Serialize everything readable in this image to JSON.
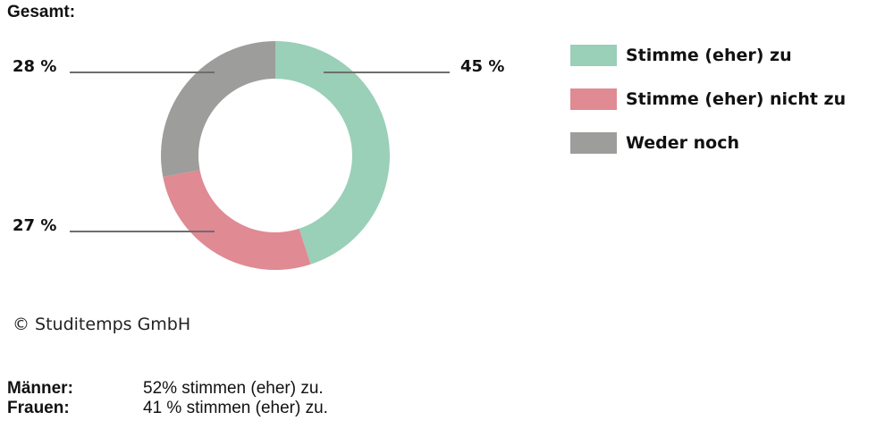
{
  "title": "Gesamt:",
  "chart_data": {
    "type": "pie",
    "subtype": "donut",
    "title": "Gesamt:",
    "categories": [
      "Stimme (eher) zu",
      "Stimme (eher) nicht zu",
      "Weder noch"
    ],
    "values": [
      45,
      27,
      28
    ],
    "unit": "%",
    "colors": [
      "#9acfb8",
      "#e08a93",
      "#9d9d9c"
    ],
    "data_labels": [
      "45 %",
      "27 %",
      "28 %"
    ],
    "legend_position": "right"
  },
  "labels": {
    "agree": "45 %",
    "disagree": "27 %",
    "neutral": "28 %"
  },
  "legend": [
    {
      "label": "Stimme (eher) zu",
      "color": "#9acfb8"
    },
    {
      "label": "Stimme (eher) nicht zu",
      "color": "#e08a93"
    },
    {
      "label": "Weder noch",
      "color": "#9d9d9c"
    }
  ],
  "copyright": "© Studitemps GmbH",
  "breakdown": [
    {
      "group": "Männer:",
      "text": "52% stimmen (eher) zu."
    },
    {
      "group": "Frauen:",
      "text": "41 % stimmen (eher) zu."
    }
  ]
}
